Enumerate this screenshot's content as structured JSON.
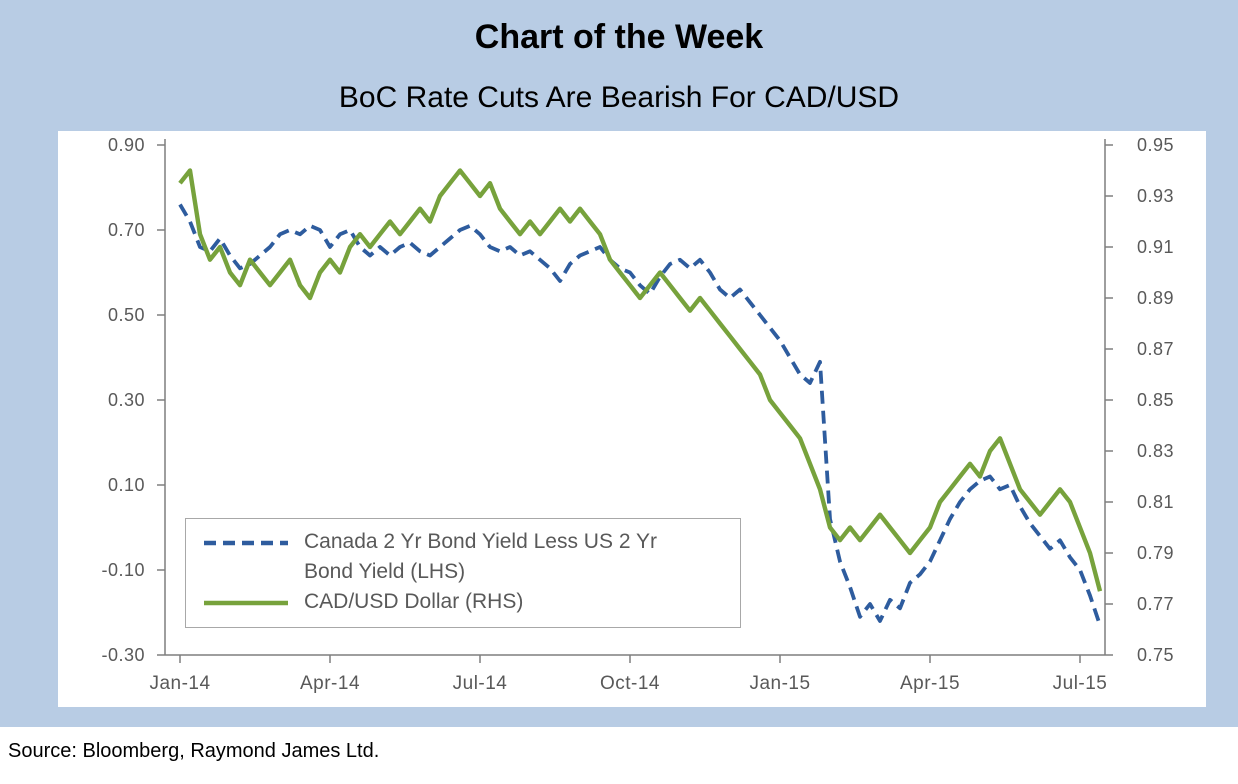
{
  "page": {
    "title": "Chart of the Week",
    "subtitle": "BoC Rate Cuts Are Bearish For CAD/USD",
    "source": "Source: Bloomberg, Raymond James Ltd."
  },
  "colors": {
    "background": "#b8cce4",
    "axis": "#7f7f7f",
    "tick_label": "#595959",
    "bond_yield_line": "#2e5c9e",
    "cadusd_line": "#77a23c"
  },
  "chart_data": {
    "type": "line",
    "title": "BoC Rate Cuts Are Bearish For CAD/USD",
    "x_unit": "months since Jan-2014",
    "x_tick_labels": [
      "Jan-14",
      "Apr-14",
      "Jul-14",
      "Oct-14",
      "Jan-15",
      "Apr-15",
      "Jul-15"
    ],
    "x_tick_positions": [
      0,
      3,
      6,
      9,
      12,
      15,
      18
    ],
    "left_axis": {
      "min": -0.3,
      "max": 0.9,
      "tick_labels": [
        "0.90",
        "0.70",
        "0.50",
        "0.30",
        "0.10",
        "-0.10",
        "-0.30"
      ],
      "tick_values": [
        0.9,
        0.7,
        0.5,
        0.3,
        0.1,
        -0.1,
        -0.3
      ]
    },
    "right_axis": {
      "min": 0.75,
      "max": 0.95,
      "tick_labels": [
        "0.95",
        "0.93",
        "0.91",
        "0.89",
        "0.87",
        "0.85",
        "0.83",
        "0.81",
        "0.79",
        "0.77",
        "0.75"
      ],
      "tick_values": [
        0.95,
        0.93,
        0.91,
        0.89,
        0.87,
        0.85,
        0.83,
        0.81,
        0.79,
        0.77,
        0.75
      ]
    },
    "legend_position": "bottom-left",
    "grid": false,
    "x": [
      0,
      0.2,
      0.4,
      0.6,
      0.8,
      1,
      1.2,
      1.4,
      1.6,
      1.8,
      2,
      2.2,
      2.4,
      2.6,
      2.8,
      3,
      3.2,
      3.4,
      3.6,
      3.8,
      4,
      4.2,
      4.4,
      4.6,
      4.8,
      5,
      5.2,
      5.4,
      5.6,
      5.8,
      6,
      6.2,
      6.4,
      6.6,
      6.8,
      7,
      7.2,
      7.4,
      7.6,
      7.8,
      8,
      8.2,
      8.4,
      8.6,
      8.8,
      9,
      9.2,
      9.4,
      9.6,
      9.8,
      10,
      10.2,
      10.4,
      10.6,
      10.8,
      11,
      11.2,
      11.4,
      11.6,
      11.8,
      12,
      12.2,
      12.4,
      12.6,
      12.8,
      13,
      13.2,
      13.4,
      13.6,
      13.8,
      14,
      14.2,
      14.4,
      14.6,
      14.8,
      15,
      15.2,
      15.4,
      15.6,
      15.8,
      16,
      16.2,
      16.4,
      16.6,
      16.8,
      17,
      17.2,
      17.4,
      17.6,
      17.8,
      18,
      18.2,
      18.4
    ],
    "series": [
      {
        "name": "Canada 2 Yr Bond Yield Less US 2 Yr Bond Yield (LHS)",
        "axis": "left",
        "style": "dashed",
        "color": "#2e5c9e",
        "values": [
          0.76,
          0.72,
          0.66,
          0.65,
          0.68,
          0.64,
          0.61,
          0.62,
          0.64,
          0.66,
          0.69,
          0.7,
          0.69,
          0.71,
          0.7,
          0.66,
          0.69,
          0.7,
          0.66,
          0.64,
          0.66,
          0.64,
          0.66,
          0.67,
          0.65,
          0.64,
          0.66,
          0.68,
          0.7,
          0.71,
          0.69,
          0.66,
          0.65,
          0.66,
          0.64,
          0.65,
          0.63,
          0.61,
          0.58,
          0.62,
          0.64,
          0.65,
          0.66,
          0.63,
          0.61,
          0.6,
          0.57,
          0.55,
          0.59,
          0.62,
          0.63,
          0.61,
          0.63,
          0.6,
          0.56,
          0.54,
          0.56,
          0.53,
          0.5,
          0.47,
          0.44,
          0.4,
          0.36,
          0.34,
          0.39,
          0.02,
          -0.08,
          -0.14,
          -0.21,
          -0.18,
          -0.22,
          -0.17,
          -0.19,
          -0.13,
          -0.11,
          -0.08,
          -0.03,
          0.02,
          0.06,
          0.09,
          0.11,
          0.12,
          0.09,
          0.1,
          0.05,
          0.01,
          -0.02,
          -0.05,
          -0.03,
          -0.07,
          -0.1,
          -0.16,
          -0.23
        ]
      },
      {
        "name": "CAD/USD Dollar (RHS)",
        "axis": "right",
        "style": "solid",
        "color": "#77a23c",
        "values": [
          0.935,
          0.94,
          0.915,
          0.905,
          0.91,
          0.9,
          0.895,
          0.905,
          0.9,
          0.895,
          0.9,
          0.905,
          0.895,
          0.89,
          0.9,
          0.905,
          0.9,
          0.91,
          0.915,
          0.91,
          0.915,
          0.92,
          0.915,
          0.92,
          0.925,
          0.92,
          0.93,
          0.935,
          0.94,
          0.935,
          0.93,
          0.935,
          0.925,
          0.92,
          0.915,
          0.92,
          0.915,
          0.92,
          0.925,
          0.92,
          0.925,
          0.92,
          0.915,
          0.905,
          0.9,
          0.895,
          0.89,
          0.895,
          0.9,
          0.895,
          0.89,
          0.885,
          0.89,
          0.885,
          0.88,
          0.875,
          0.87,
          0.865,
          0.86,
          0.85,
          0.845,
          0.84,
          0.835,
          0.825,
          0.815,
          0.8,
          0.795,
          0.8,
          0.795,
          0.8,
          0.805,
          0.8,
          0.795,
          0.79,
          0.795,
          0.8,
          0.81,
          0.815,
          0.82,
          0.825,
          0.82,
          0.83,
          0.835,
          0.825,
          0.815,
          0.81,
          0.805,
          0.81,
          0.815,
          0.81,
          0.8,
          0.79,
          0.775
        ]
      }
    ]
  }
}
